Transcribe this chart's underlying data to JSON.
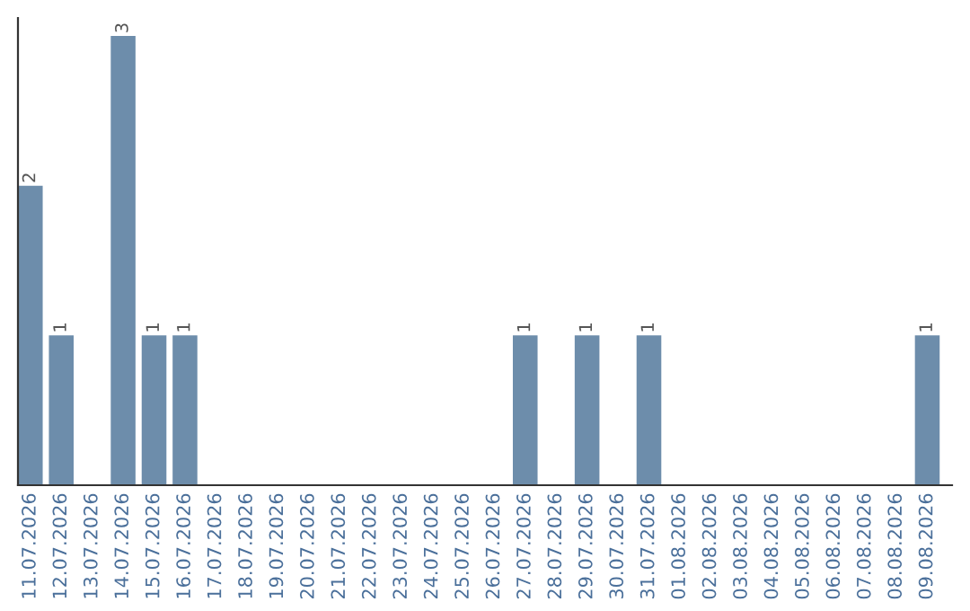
{
  "chart_data": {
    "type": "bar",
    "categories": [
      "11.07.2026",
      "12.07.2026",
      "13.07.2026",
      "14.07.2026",
      "15.07.2026",
      "16.07.2026",
      "17.07.2026",
      "18.07.2026",
      "19.07.2026",
      "20.07.2026",
      "21.07.2026",
      "22.07.2026",
      "23.07.2026",
      "24.07.2026",
      "25.07.2026",
      "26.07.2026",
      "27.07.2026",
      "28.07.2026",
      "29.07.2026",
      "30.07.2026",
      "31.07.2026",
      "01.08.2026",
      "02.08.2026",
      "03.08.2026",
      "04.08.2026",
      "05.08.2026",
      "06.08.2026",
      "07.08.2026",
      "08.08.2026",
      "09.08.2026"
    ],
    "values": [
      2,
      1,
      0,
      3,
      1,
      1,
      0,
      0,
      0,
      0,
      0,
      0,
      0,
      0,
      0,
      0,
      1,
      0,
      1,
      0,
      1,
      0,
      0,
      0,
      0,
      0,
      0,
      0,
      0,
      1
    ],
    "value_labels": [
      "2",
      "1",
      null,
      "3",
      "1",
      "1",
      null,
      null,
      null,
      null,
      null,
      null,
      null,
      null,
      null,
      null,
      "1",
      null,
      "1",
      null,
      "1",
      null,
      null,
      null,
      null,
      null,
      null,
      null,
      null,
      "1"
    ],
    "color": "#6d8dab",
    "tick_labels": "x",
    "grid": false,
    "legend": false
  }
}
